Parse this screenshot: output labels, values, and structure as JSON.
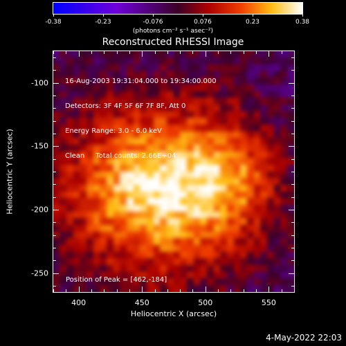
{
  "colorbar": {
    "ticks": [
      "-0.38",
      "-0.23",
      "-0.076",
      "0.076",
      "0.23",
      "0.38"
    ],
    "units": "(photons cm⁻² s⁻¹ asec⁻²)",
    "range": [
      -0.38,
      0.38
    ]
  },
  "title": "Reconstructed RHESSI Image",
  "info": {
    "line1": "16-Aug-2003 19:31:04.000 to 19:34:00.000",
    "line2": "Detectors: 3F 4F 5F 6F 7F 8F, Att 0",
    "line3": "Energy Range: 3.0 - 6.0 keV",
    "line4": "Clean     Total counts: 2.66E+04"
  },
  "peak_label": "Position of Peak = [462,-184]",
  "chart_data": {
    "type": "heatmap",
    "title": "Reconstructed RHESSI Image",
    "xlabel": "Heliocentric X (arcsec)",
    "ylabel": "Heliocentric Y (arcsec)",
    "xlim": [
      380,
      570
    ],
    "ylim": [
      -265,
      -75
    ],
    "xticks": [
      400,
      450,
      500,
      550
    ],
    "yticks": [
      -100,
      -150,
      -200,
      -250
    ],
    "peak": [
      462,
      -184
    ],
    "colorbar_range": [
      -0.38,
      0.38
    ]
  },
  "footer": {
    "timestamp": "4-May-2022 22:03"
  },
  "colors": {
    "background": "#000000",
    "foreground": "#ffffff"
  }
}
